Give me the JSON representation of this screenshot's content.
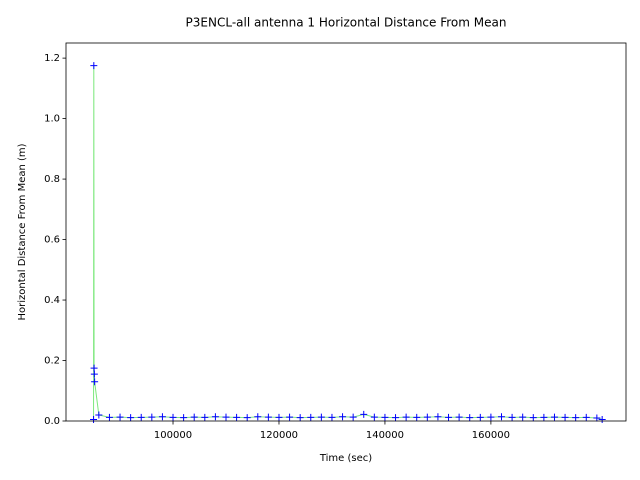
{
  "chart_data": {
    "type": "line",
    "title": "P3ENCL-all antenna 1 Horizontal Distance From Mean",
    "xlabel": "Time (sec)",
    "ylabel": "Horizontal Distance From Mean (m)",
    "x": [
      85000,
      85050,
      85100,
      85150,
      85200,
      86000,
      88000,
      90000,
      92000,
      94000,
      96000,
      98000,
      100000,
      102000,
      104000,
      106000,
      108000,
      110000,
      112000,
      114000,
      116000,
      118000,
      120000,
      122000,
      124000,
      126000,
      128000,
      130000,
      132000,
      134000,
      136000,
      138000,
      140000,
      142000,
      144000,
      146000,
      148000,
      150000,
      152000,
      154000,
      156000,
      158000,
      160000,
      162000,
      164000,
      166000,
      168000,
      170000,
      172000,
      174000,
      176000,
      178000,
      180000,
      181000
    ],
    "series": [
      {
        "name": "antenna 1",
        "color": "#0000ff",
        "line_color": "#7de87d",
        "values": [
          0.005,
          1.175,
          0.175,
          0.155,
          0.13,
          0.02,
          0.012,
          0.013,
          0.011,
          0.012,
          0.013,
          0.014,
          0.012,
          0.011,
          0.013,
          0.012,
          0.014,
          0.013,
          0.012,
          0.011,
          0.014,
          0.013,
          0.012,
          0.013,
          0.011,
          0.012,
          0.013,
          0.012,
          0.014,
          0.013,
          0.022,
          0.013,
          0.012,
          0.011,
          0.013,
          0.012,
          0.013,
          0.014,
          0.012,
          0.013,
          0.011,
          0.012,
          0.013,
          0.014,
          0.012,
          0.013,
          0.011,
          0.012,
          0.013,
          0.012,
          0.011,
          0.012,
          0.01,
          0.005
        ]
      }
    ],
    "xlim": [
      79800,
      185500
    ],
    "ylim": [
      0,
      1.25
    ],
    "xticks": [
      100000,
      120000,
      140000,
      160000
    ],
    "yticks": [
      {
        "value": 0,
        "label": "0.0"
      },
      {
        "value": 0.2,
        "label": "0.2"
      },
      {
        "value": 0.4,
        "label": "0.4"
      },
      {
        "value": 0.6,
        "label": "0.6"
      },
      {
        "value": 0.8,
        "label": "0.8"
      },
      {
        "value": 1.0,
        "label": "1.0"
      },
      {
        "value": 1.2,
        "label": "1.2"
      }
    ]
  }
}
